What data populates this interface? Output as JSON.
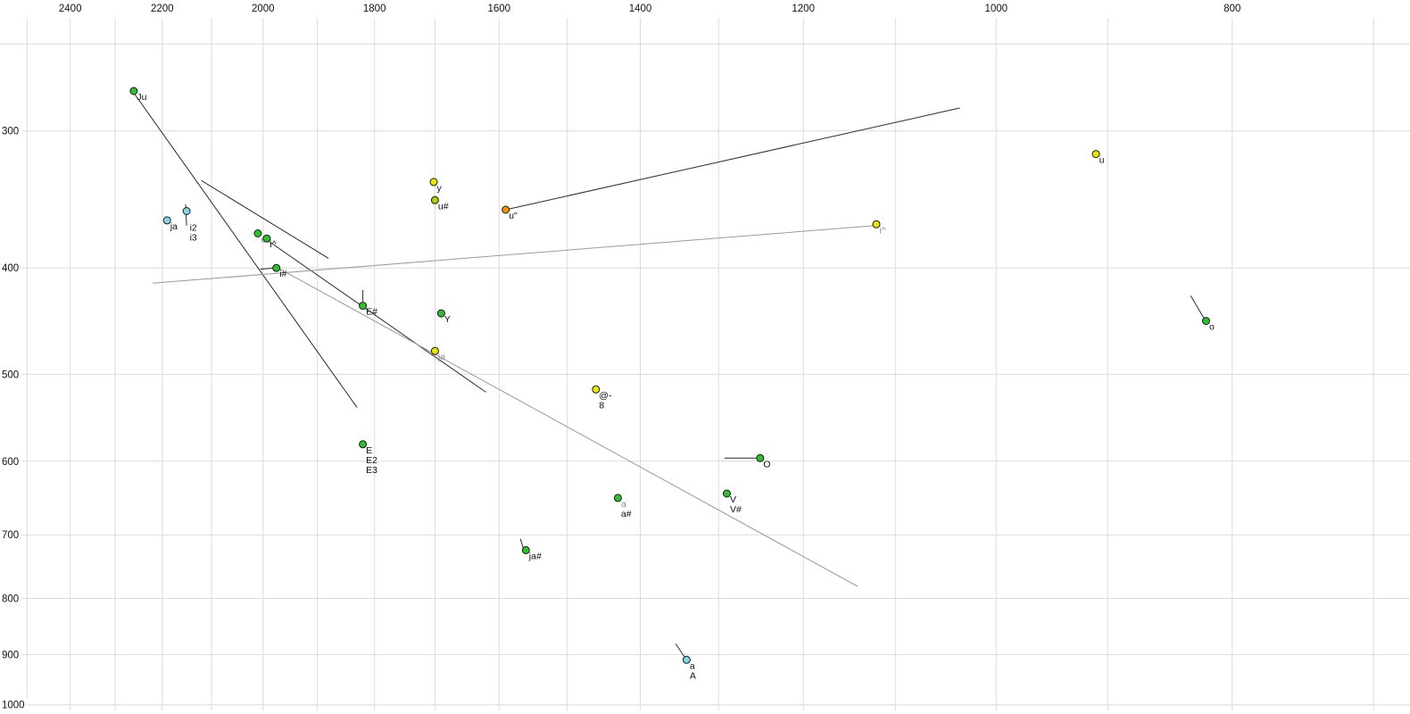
{
  "chart_data": {
    "type": "scatter",
    "title": "",
    "description": "Vowel formant plot: F2 (Hz) on reversed log x-axis (top labels), F1 (Hz) on log y-axis increasing downward (left labels). Phonetic-symbol labelled points with trajectory lines.",
    "x_axis": {
      "ticks": [
        {
          "label": "2400",
          "value": 2400
        },
        {
          "label": "2200",
          "value": 2200
        },
        {
          "label": "2000",
          "value": 2000
        },
        {
          "label": "1800",
          "value": 1800
        },
        {
          "label": "1600",
          "value": 1600
        },
        {
          "label": "1400",
          "value": 1400
        },
        {
          "label": "1200",
          "value": 1200
        },
        {
          "label": "1000",
          "value": 1000
        },
        {
          "label": "800",
          "value": 800
        }
      ],
      "gridlines": [
        2500,
        2400,
        2300,
        2200,
        2100,
        2000,
        1900,
        1800,
        1700,
        1600,
        1500,
        1400,
        1300,
        1200,
        1100,
        1000,
        900,
        800,
        700
      ],
      "scale": "log",
      "reversed": true
    },
    "y_axis": {
      "ticks": [
        {
          "label": "300",
          "value": 300
        },
        {
          "label": "400",
          "value": 400
        },
        {
          "label": "500",
          "value": 500
        },
        {
          "label": "600",
          "value": 600
        },
        {
          "label": "700",
          "value": 700
        },
        {
          "label": "800",
          "value": 800
        },
        {
          "label": "900",
          "value": 900
        },
        {
          "label": "1000",
          "value": 1000
        }
      ],
      "gridlines": [
        250,
        300,
        400,
        500,
        600,
        700,
        800,
        900,
        1000
      ],
      "scale": "log",
      "increasing_downward": true
    },
    "style": {
      "background": "#ffffff",
      "grid_color": "#dcdcdc",
      "line_dark": "#2a2a2a",
      "line_gray": "#9a9a9a",
      "label_color": "#111111",
      "muted_label_color": "#8f8f8f",
      "point_colors": {
        "green": "#2fbf2f",
        "yellow": "#e8e800",
        "yellowgreen": "#a6d600",
        "orange": "#ef9400",
        "cyan": "#82d4e6"
      }
    },
    "points": [
      {
        "name": "ju",
        "f2": 2260,
        "f1": 276,
        "color": "green",
        "labels": [
          {
            "text": "Ju",
            "muted": false
          }
        ]
      },
      {
        "name": "y",
        "f2": 1702,
        "f1": 334,
        "color": "yellow",
        "labels": [
          {
            "text": "y",
            "muted": false
          }
        ]
      },
      {
        "name": "u-hash",
        "f2": 1700,
        "f1": 347,
        "color": "yellowgreen",
        "labels": [
          {
            "text": "u#",
            "muted": false
          }
        ]
      },
      {
        "name": "u-umlaut",
        "f2": 1590,
        "f1": 354,
        "color": "orange",
        "labels": [
          {
            "text": "u\"",
            "muted": false
          }
        ]
      },
      {
        "name": "ja-left",
        "f2": 2190,
        "f1": 362,
        "color": "cyan",
        "labels": [
          {
            "text": "ja",
            "muted": false
          }
        ]
      },
      {
        "name": "i2-i3",
        "f2": 2150,
        "f1": 355,
        "color": "cyan",
        "label_dy": 22,
        "labels": [
          {
            "text": "i2",
            "muted": false
          },
          {
            "text": "i3",
            "muted": false
          }
        ]
      },
      {
        "name": "e",
        "f2": 2010,
        "f1": 372,
        "color": "green",
        "labels": [
          {
            "text": "e",
            "muted": true
          }
        ]
      },
      {
        "name": "i-caret",
        "f2": 1993,
        "f1": 376,
        "color": "green",
        "labels": [
          {
            "text": "i^",
            "muted": false
          }
        ]
      },
      {
        "name": "i-hash",
        "f2": 1975,
        "f1": 400,
        "color": "green",
        "labels": [
          {
            "text": "i#",
            "muted": false
          }
        ]
      },
      {
        "name": "E-hash",
        "f2": 1820,
        "f1": 433,
        "color": "green",
        "labels": [
          {
            "text": "E#",
            "muted": false
          }
        ]
      },
      {
        "name": "Y",
        "f2": 1690,
        "f1": 440,
        "color": "green",
        "labels": [
          {
            "text": "Y",
            "muted": false
          }
        ]
      },
      {
        "name": "ja-center",
        "f2": 1700,
        "f1": 476,
        "color": "yellow",
        "labels": [
          {
            "text": "ja",
            "muted": true
          }
        ]
      },
      {
        "name": "i-caret-right",
        "f2": 1120,
        "f1": 365,
        "color": "yellow",
        "labels": [
          {
            "text": "i^",
            "muted": true
          }
        ]
      },
      {
        "name": "u",
        "f2": 910,
        "f1": 315,
        "color": "yellow",
        "labels": [
          {
            "text": "u",
            "muted": false
          }
        ]
      },
      {
        "name": "o",
        "f2": 820,
        "f1": 447,
        "color": "green",
        "labels": [
          {
            "text": "o",
            "muted": false
          }
        ]
      },
      {
        "name": "at-dash-8",
        "f2": 1460,
        "f1": 516,
        "color": "yellow",
        "labels": [
          {
            "text": "@-",
            "muted": false
          },
          {
            "text": "8",
            "muted": false
          }
        ]
      },
      {
        "name": "E-E2-E3",
        "f2": 1820,
        "f1": 579,
        "color": "green",
        "labels": [
          {
            "text": "E",
            "muted": false
          },
          {
            "text": "E2",
            "muted": false
          },
          {
            "text": "E3",
            "muted": false
          }
        ]
      },
      {
        "name": "O",
        "f2": 1250,
        "f1": 596,
        "color": "green",
        "labels": [
          {
            "text": "O",
            "muted": false
          }
        ]
      },
      {
        "name": "a-hash",
        "f2": 1430,
        "f1": 648,
        "color": "green",
        "labels": [
          {
            "text": "a",
            "muted": true
          },
          {
            "text": "a#",
            "muted": false
          }
        ]
      },
      {
        "name": "V-V-hash",
        "f2": 1290,
        "f1": 642,
        "color": "green",
        "labels": [
          {
            "text": "V",
            "muted": false
          },
          {
            "text": "V#",
            "muted": false
          }
        ]
      },
      {
        "name": "ja-hash",
        "f2": 1560,
        "f1": 723,
        "color": "green",
        "labels": [
          {
            "text": "ja#",
            "muted": false
          }
        ]
      },
      {
        "name": "a-A",
        "f2": 1340,
        "f1": 910,
        "color": "cyan",
        "labels": [
          {
            "text": "a",
            "muted": false
          },
          {
            "text": "A",
            "muted": false
          }
        ]
      }
    ],
    "segments": [
      {
        "f2_from": 2260,
        "f1_from": 277,
        "f2_to": 1830,
        "f1_to": 536,
        "tone": "dark"
      },
      {
        "f2_from": 2120,
        "f1_from": 333,
        "f2_to": 1880,
        "f1_to": 392,
        "tone": "dark"
      },
      {
        "f2_from": 1990,
        "f1_from": 378,
        "f2_to": 1620,
        "f1_to": 519,
        "tone": "dark"
      },
      {
        "f2_from": 1590,
        "f1_from": 354,
        "f2_to": 1035,
        "f1_to": 286,
        "tone": "dark"
      },
      {
        "f2_from": 2220,
        "f1_from": 413,
        "f2_to": 1122,
        "f1_to": 366,
        "tone": "gray"
      },
      {
        "f2_from": 1972,
        "f1_from": 400,
        "f2_to": 1140,
        "f1_to": 780,
        "tone": "gray"
      },
      {
        "f2_from": 1293,
        "f1_from": 596,
        "f2_to": 1252,
        "f1_to": 596,
        "tone": "dark"
      },
      {
        "f2_from": 832,
        "f1_from": 424,
        "f2_to": 821,
        "f1_to": 446,
        "tone": "dark"
      },
      {
        "f2_from": 1354,
        "f1_from": 880,
        "f2_to": 1341,
        "f1_to": 908,
        "tone": "dark"
      },
      {
        "f2_from": 2152,
        "f1_from": 350,
        "f2_to": 2150,
        "f1_to": 366,
        "tone": "dark"
      },
      {
        "f2_from": 1820,
        "f1_from": 419,
        "f2_to": 1820,
        "f1_to": 432,
        "tone": "dark"
      },
      {
        "f2_from": 2005,
        "f1_from": 401,
        "f2_to": 1978,
        "f1_to": 400,
        "tone": "dark"
      },
      {
        "f2_from": 1568,
        "f1_from": 706,
        "f2_to": 1562,
        "f1_to": 726,
        "tone": "dark"
      }
    ]
  }
}
